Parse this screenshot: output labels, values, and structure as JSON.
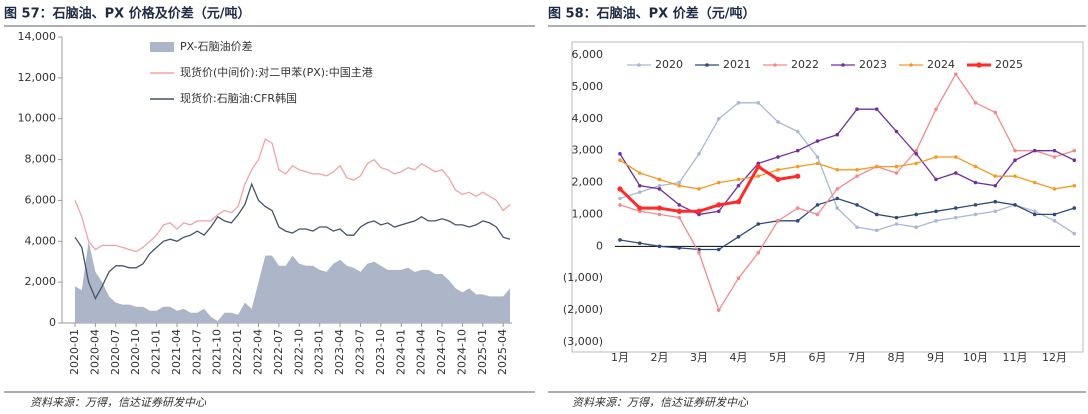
{
  "chart_data": [
    {
      "type": "combo",
      "title": "图 57：石脑油、PX 价格及价差（元/吨）",
      "source": "资料来源：万得，信达证券研发中心",
      "categories": [
        "2020-01",
        null,
        null,
        "2020-04",
        null,
        null,
        "2020-07",
        null,
        null,
        "2020-10",
        null,
        null,
        "2021-01",
        null,
        null,
        "2021-04",
        null,
        null,
        "2021-07",
        null,
        null,
        "2021-10",
        null,
        null,
        "2022-01",
        null,
        null,
        "2022-04",
        null,
        null,
        "2022-07",
        null,
        null,
        "2022-10",
        null,
        null,
        "2023-01",
        null,
        null,
        "2023-04",
        null,
        null,
        "2023-07",
        null,
        null,
        "2023-10",
        null,
        null,
        "2024-01",
        null,
        null,
        "2024-04",
        null,
        null,
        "2024-07",
        null,
        null,
        "2024-10",
        null,
        null,
        "2025-01",
        null,
        null,
        "2025-04",
        null
      ],
      "ylim": [
        0,
        14000
      ],
      "yticks": [
        0,
        {
          "value": 2000,
          "label": "2,000"
        },
        {
          "value": 4000,
          "label": "4,000"
        },
        {
          "value": 6000,
          "label": "6,000"
        },
        {
          "value": 8000,
          "label": "8,000"
        },
        {
          "value": 10000,
          "label": "10,000"
        },
        {
          "value": 12000,
          "label": "12,000"
        },
        {
          "value": 14000,
          "label": "14,000"
        }
      ],
      "grid": false,
      "series": [
        {
          "name": "PX-石脑油价差",
          "type": "area",
          "color": "#acb6c8",
          "values": [
            1800,
            1600,
            4000,
            2500,
            2000,
            1300,
            1000,
            900,
            900,
            800,
            800,
            600,
            600,
            800,
            800,
            600,
            700,
            500,
            500,
            700,
            300,
            100,
            500,
            500,
            400,
            1000,
            700,
            2000,
            3300,
            3300,
            2800,
            2800,
            3300,
            2900,
            2800,
            2800,
            2600,
            2500,
            2900,
            3100,
            2800,
            2700,
            2500,
            2900,
            3000,
            2800,
            2600,
            2600,
            2600,
            2700,
            2500,
            2600,
            2600,
            2400,
            2400,
            2100,
            1700,
            1500,
            1700,
            1400,
            1400,
            1300,
            1300,
            1300,
            1700
          ]
        },
        {
          "name": "现货价(中间价):对二甲苯(PX):中国主港",
          "type": "line",
          "color": "#f4a3a3",
          "values": [
            6000,
            5200,
            4000,
            3600,
            3800,
            3800,
            3800,
            3700,
            3600,
            3500,
            3700,
            4000,
            4300,
            4800,
            4900,
            4600,
            4900,
            4800,
            5000,
            5000,
            5000,
            5300,
            5500,
            5400,
            5700,
            6800,
            7500,
            8000,
            9000,
            8800,
            7500,
            7300,
            7700,
            7500,
            7400,
            7300,
            7300,
            7200,
            7400,
            7700,
            7100,
            7000,
            7200,
            7800,
            8000,
            7600,
            7500,
            7300,
            7400,
            7600,
            7500,
            7800,
            7600,
            7400,
            7500,
            7100,
            6500,
            6300,
            6400,
            6200,
            6400,
            6200,
            6000,
            5500,
            5800
          ]
        },
        {
          "name": "现货价:石脑油:CFR韩国",
          "type": "line",
          "color": "#44546a",
          "values": [
            4200,
            3700,
            2000,
            1200,
            1800,
            2500,
            2800,
            2800,
            2700,
            2700,
            2900,
            3400,
            3700,
            4000,
            4100,
            4000,
            4200,
            4300,
            4500,
            4300,
            4700,
            5200,
            5000,
            4900,
            5300,
            5800,
            6800,
            6000,
            5700,
            5500,
            4700,
            4500,
            4400,
            4600,
            4600,
            4500,
            4700,
            4700,
            4500,
            4600,
            4300,
            4300,
            4700,
            4900,
            5000,
            4800,
            4900,
            4700,
            4800,
            4900,
            5000,
            5200,
            5000,
            5000,
            5100,
            5000,
            4800,
            4800,
            4700,
            4800,
            5000,
            4900,
            4700,
            4200,
            4100
          ]
        }
      ]
    },
    {
      "type": "line",
      "title": "图 58：石脑油、PX 价差（元/吨）",
      "source": "资料来源：万得，信达证券研发中心",
      "categories": [
        "1月",
        null,
        "2月",
        null,
        "3月",
        null,
        "4月",
        null,
        "5月",
        null,
        "6月",
        null,
        "7月",
        null,
        "8月",
        null,
        "9月",
        null,
        "10月",
        null,
        "11月",
        null,
        "12月",
        null
      ],
      "ylim": [
        -3000,
        6000
      ],
      "yticks": [
        {
          "value": -3000,
          "label": "(3,000)"
        },
        {
          "value": -2000,
          "label": "(2,000)"
        },
        {
          "value": -1000,
          "label": "(1,000)"
        },
        0,
        {
          "value": 1000,
          "label": "1,000"
        },
        {
          "value": 2000,
          "label": "2,000"
        },
        {
          "value": 3000,
          "label": "3,000"
        },
        {
          "value": 4000,
          "label": "4,000"
        },
        {
          "value": 5000,
          "label": "5,000"
        },
        {
          "value": 6000,
          "label": "6,000"
        }
      ],
      "negative_tick_color": "#e00000",
      "grid": false,
      "series": [
        {
          "name": "2020",
          "color": "#a9b8d6",
          "values": [
            1500,
            1700,
            1900,
            2000,
            2900,
            4000,
            4500,
            4500,
            3900,
            3600,
            2800,
            1200,
            600,
            500,
            700,
            600,
            800,
            900,
            1000,
            1100,
            1300,
            1100,
            800,
            400
          ]
        },
        {
          "name": "2021",
          "color": "#2f4a7a",
          "values": [
            200,
            100,
            0,
            -50,
            -100,
            -100,
            300,
            700,
            800,
            800,
            1300,
            1500,
            1300,
            1000,
            900,
            1000,
            1100,
            1200,
            1300,
            1400,
            1300,
            1000,
            1000,
            1200
          ]
        },
        {
          "name": "2022",
          "color": "#f28b8b",
          "values": [
            1300,
            1100,
            1000,
            900,
            -200,
            -2000,
            -1000,
            -200,
            800,
            1200,
            1000,
            1800,
            2200,
            2500,
            2300,
            3000,
            4300,
            5400,
            4500,
            4200,
            3000,
            3000,
            2800,
            3000
          ]
        },
        {
          "name": "2023",
          "color": "#7030a0",
          "values": [
            2900,
            1900,
            1800,
            1300,
            1000,
            1100,
            1900,
            2600,
            2800,
            3000,
            3300,
            3500,
            4300,
            4300,
            3600,
            2900,
            2100,
            2300,
            2000,
            1900,
            2700,
            3000,
            3000,
            2700
          ]
        },
        {
          "name": "2024",
          "color": "#f59a23",
          "values": [
            2700,
            2300,
            2100,
            1900,
            1800,
            2000,
            2100,
            2200,
            2400,
            2500,
            2600,
            2400,
            2400,
            2500,
            2500,
            2600,
            2800,
            2800,
            2500,
            2200,
            2200,
            2000,
            1800,
            1900
          ]
        },
        {
          "name": "2025",
          "color": "#ff2a2a",
          "width": 3,
          "values": [
            1800,
            1200,
            1200,
            1100,
            1100,
            1300,
            1400,
            2500,
            2100,
            2200,
            null,
            null,
            null,
            null,
            null,
            null,
            null,
            null,
            null,
            null,
            null,
            null,
            null,
            null
          ]
        }
      ]
    }
  ]
}
